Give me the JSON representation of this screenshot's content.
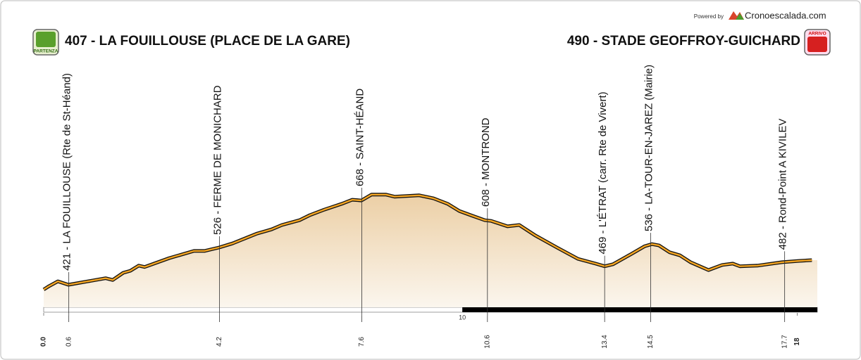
{
  "chart_data": {
    "type": "area",
    "start_title": "407 - LA FOUILLOUSE (PLACE DE LA GARE)",
    "finish_title": "490 - STADE GEOFFROY-GUICHARD",
    "start_badge": "PARTENZA",
    "finish_badge": "ARRIVO",
    "powered_by": "Powered by",
    "brand": "Cronoescalada.com",
    "x": [
      0,
      0.13,
      0.34,
      0.59,
      1.06,
      1.48,
      1.65,
      1.9,
      2.07,
      2.27,
      2.41,
      3.0,
      3.59,
      3.84,
      4.19,
      4.51,
      5.1,
      5.44,
      5.69,
      6.11,
      6.36,
      6.7,
      7.12,
      7.37,
      7.59,
      7.83,
      8.18,
      8.38,
      8.97,
      9.31,
      9.65,
      9.93,
      10.24,
      10.54,
      10.69,
      11.08,
      11.36,
      11.75,
      12.26,
      12.76,
      13.18,
      13.4,
      13.6,
      14.02,
      14.36,
      14.53,
      14.7,
      14.95,
      15.2,
      15.45,
      15.88,
      16.21,
      16.46,
      16.63,
      17.05,
      17.64,
      18.06,
      18.35
    ],
    "values": [
      407,
      417,
      431,
      421,
      431,
      440,
      435,
      456,
      462,
      477,
      473,
      499,
      520,
      520,
      530,
      542,
      571,
      583,
      596,
      610,
      625,
      641,
      658,
      670,
      668,
      685,
      685,
      679,
      683,
      674,
      658,
      637,
      623,
      610,
      608,
      592,
      596,
      565,
      530,
      497,
      483,
      475,
      481,
      510,
      534,
      540,
      536,
      516,
      507,
      487,
      464,
      479,
      483,
      475,
      477,
      487,
      491,
      493
    ],
    "color": "#f5a623",
    "fill_color": "#eccfa5",
    "xlim": [
      0,
      18.48
    ],
    "ylim": [
      355,
      1111
    ],
    "xticks": [
      {
        "value": 0,
        "label": "0.0"
      },
      0.6,
      4.2,
      7.6,
      10.6,
      13.4,
      14.5,
      17.7,
      18
    ],
    "km_marker": 10,
    "waypoints": [
      {
        "km": 0.6,
        "elevation": 421,
        "label": "421 - LA FOUILLOUSE (Rte de St-Héand)"
      },
      {
        "km": 4.2,
        "elevation": 526,
        "label": "526 - FERME DE MONICHARD"
      },
      {
        "km": 7.6,
        "elevation": 668,
        "label": "668 - SAINT-HÉAND"
      },
      {
        "km": 10.6,
        "elevation": 608,
        "label": "608 - MONTROND"
      },
      {
        "km": 13.4,
        "elevation": 469,
        "label": "469 - L'ÉTRAT (carr. Rte de Vivert)"
      },
      {
        "km": 14.5,
        "elevation": 536,
        "label": "536 - LA-TOUR-EN-JAREZ (Mairie)"
      },
      {
        "km": 17.7,
        "elevation": 482,
        "label": "482 - Rond-Point A KIVILEV"
      }
    ]
  }
}
